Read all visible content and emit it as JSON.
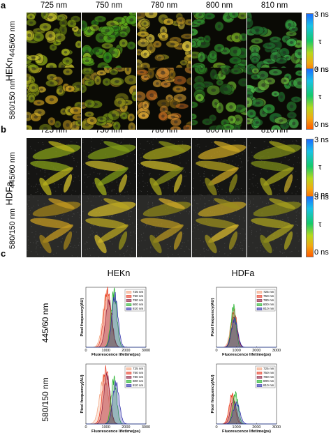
{
  "panel_a": {
    "letter": "a",
    "cell_label": "HEKn",
    "wavelengths": [
      "725 nm",
      "750 nm",
      "780 nm",
      "800 nm",
      "810 nm"
    ],
    "rows": [
      "445/60 nm",
      "580/150 nm"
    ],
    "colorbar": {
      "top": "3 ns",
      "mid": "τ",
      "bottom": "0 ns"
    }
  },
  "panel_b": {
    "letter": "b",
    "cell_label": "HDFa",
    "wavelengths": [
      "725 nm",
      "750 nm",
      "780 nm",
      "800 nm",
      "810 nm"
    ],
    "rows": [
      "445/60 nm",
      "580/150 nm"
    ],
    "colorbar": {
      "top": "3 ns",
      "mid": "τ",
      "bottom": "0 ns"
    }
  },
  "panel_c": {
    "letter": "c",
    "col_titles": [
      "HEKn",
      "HDFa"
    ],
    "row_labels": [
      "445/60 nm",
      "580/150 nm"
    ]
  },
  "chart_data": [
    {
      "type": "area",
      "name": "HEKn 445/60 nm",
      "xlabel": "Fluorescence lifetime(ps)",
      "ylabel": "Pixel frequency(AU)",
      "xlim": [
        0,
        3000
      ],
      "xticks": [
        "0",
        "1000",
        "2000",
        "3000"
      ],
      "legend": [
        "725 nm",
        "750 nm",
        "780 nm",
        "800 nm",
        "810 nm"
      ],
      "legend_colors": [
        "#f2a07b",
        "#e8361e",
        "#8b1a3a",
        "#22b22a",
        "#2a2aa8"
      ],
      "series": [
        {
          "name": "725 nm",
          "peak_x": 1050,
          "peak_y": 0.92,
          "width": 420
        },
        {
          "name": "750 nm",
          "peak_x": 1080,
          "peak_y": 0.95,
          "width": 380
        },
        {
          "name": "780 nm",
          "peak_x": 1150,
          "peak_y": 0.78,
          "width": 340
        },
        {
          "name": "800 nm",
          "peak_x": 1400,
          "peak_y": 0.96,
          "width": 300
        },
        {
          "name": "810 nm",
          "peak_x": 1450,
          "peak_y": 0.88,
          "width": 320
        }
      ]
    },
    {
      "type": "area",
      "name": "HDFa 445/60 nm",
      "xlabel": "Fluorescence lifetime(ps)",
      "ylabel": "Pixel frequency(AU)",
      "xlim": [
        0,
        3000
      ],
      "xticks": [
        "0",
        "1000",
        "2000",
        "3000"
      ],
      "legend": [
        "725 nm",
        "750 nm",
        "780 nm",
        "800 nm",
        "810 nm"
      ],
      "legend_colors": [
        "#f2a07b",
        "#e8361e",
        "#8b1a3a",
        "#22b22a",
        "#2a2aa8"
      ],
      "series": [
        {
          "name": "725 nm",
          "peak_x": 850,
          "peak_y": 0.55,
          "width": 330
        },
        {
          "name": "750 nm",
          "peak_x": 880,
          "peak_y": 0.62,
          "width": 300
        },
        {
          "name": "780 nm",
          "peak_x": 900,
          "peak_y": 0.52,
          "width": 290
        },
        {
          "name": "800 nm",
          "peak_x": 850,
          "peak_y": 0.7,
          "width": 250
        },
        {
          "name": "810 nm",
          "peak_x": 900,
          "peak_y": 0.48,
          "width": 320
        }
      ]
    },
    {
      "type": "area",
      "name": "HEKn 580/150 nm",
      "xlabel": "Fluorescence lifetime(ps)",
      "ylabel": "Pixel frequency(AU)",
      "xlim": [
        0,
        3000
      ],
      "xticks": [
        "0",
        "1000",
        "2000",
        "3000"
      ],
      "legend": [
        "725 nm",
        "750 nm",
        "780 nm",
        "800 nm",
        "810 nm"
      ],
      "legend_colors": [
        "#f2a07b",
        "#e8361e",
        "#8b1a3a",
        "#22b22a",
        "#2a2aa8"
      ],
      "series": [
        {
          "name": "725 nm",
          "peak_x": 900,
          "peak_y": 0.8,
          "width": 430
        },
        {
          "name": "750 nm",
          "peak_x": 1000,
          "peak_y": 0.92,
          "width": 360
        },
        {
          "name": "780 nm",
          "peak_x": 1050,
          "peak_y": 0.82,
          "width": 330
        },
        {
          "name": "800 nm",
          "peak_x": 1400,
          "peak_y": 0.78,
          "width": 280
        },
        {
          "name": "810 nm",
          "peak_x": 1500,
          "peak_y": 0.7,
          "width": 330
        }
      ]
    },
    {
      "type": "area",
      "name": "HDFa 580/150 nm",
      "xlabel": "Fluorescence lifetime(ps)",
      "ylabel": "Pixel frequency(AU)",
      "xlim": [
        0,
        3000
      ],
      "xticks": [
        "0",
        "1000",
        "2000",
        "3000"
      ],
      "legend": [
        "725 nm",
        "750 nm",
        "780 nm",
        "800 nm",
        "810 nm"
      ],
      "legend_colors": [
        "#f2a07b",
        "#e8361e",
        "#8b1a3a",
        "#22b22a",
        "#2a2aa8"
      ],
      "series": [
        {
          "name": "725 nm",
          "peak_x": 800,
          "peak_y": 0.48,
          "width": 330
        },
        {
          "name": "750 nm",
          "peak_x": 780,
          "peak_y": 0.5,
          "width": 300
        },
        {
          "name": "780 nm",
          "peak_x": 850,
          "peak_y": 0.4,
          "width": 320
        },
        {
          "name": "800 nm",
          "peak_x": 950,
          "peak_y": 0.52,
          "width": 280
        },
        {
          "name": "810 nm",
          "peak_x": 1000,
          "peak_y": 0.36,
          "width": 340
        }
      ]
    }
  ]
}
